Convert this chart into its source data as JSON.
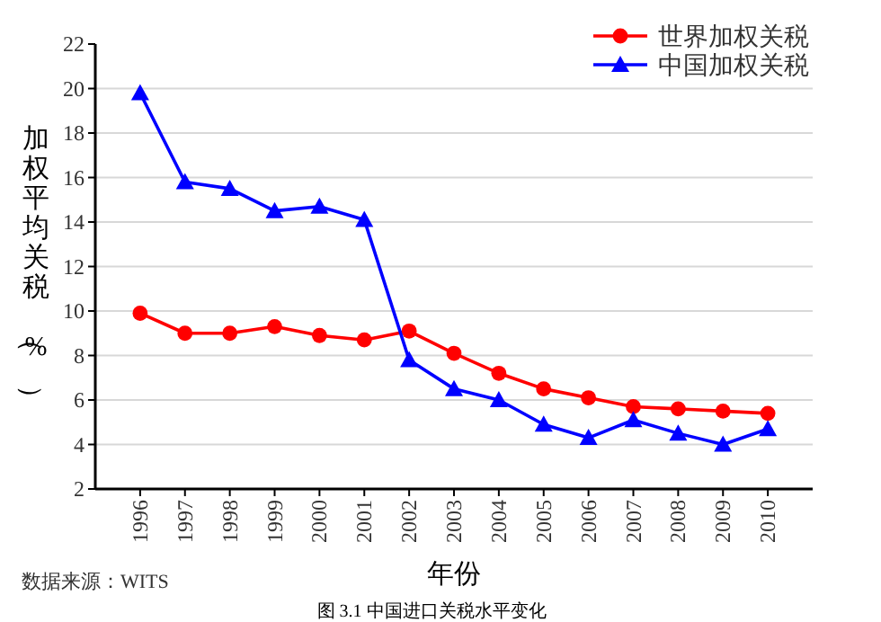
{
  "chart_data": {
    "type": "line",
    "xlabel": "年份",
    "ylabel": "加权平均关税（%）",
    "categories": [
      "1996",
      "1997",
      "1998",
      "1999",
      "2000",
      "2001",
      "2002",
      "2003",
      "2004",
      "2005",
      "2006",
      "2007",
      "2008",
      "2009",
      "2010"
    ],
    "series": [
      {
        "name": "世界加权关税",
        "color": "#ff0000",
        "marker": "circle",
        "values": [
          9.9,
          9.0,
          9.0,
          9.3,
          8.9,
          8.7,
          9.1,
          8.1,
          7.2,
          6.5,
          6.1,
          5.7,
          5.6,
          5.5,
          5.4
        ]
      },
      {
        "name": "中国加权关税",
        "color": "#0000ff",
        "marker": "triangle",
        "values": [
          19.8,
          15.8,
          15.5,
          14.5,
          14.7,
          14.1,
          7.8,
          6.5,
          6.0,
          4.9,
          4.3,
          5.1,
          4.5,
          4.0,
          4.7
        ]
      }
    ],
    "ylim": [
      2,
      22
    ],
    "yticks": [
      2,
      4,
      6,
      8,
      10,
      12,
      14,
      16,
      18,
      20,
      22
    ],
    "grid": "y",
    "legend": "top right",
    "annotations": [
      "数据来源：WITS",
      "图 3.1 中国进口关税水平变化"
    ]
  }
}
